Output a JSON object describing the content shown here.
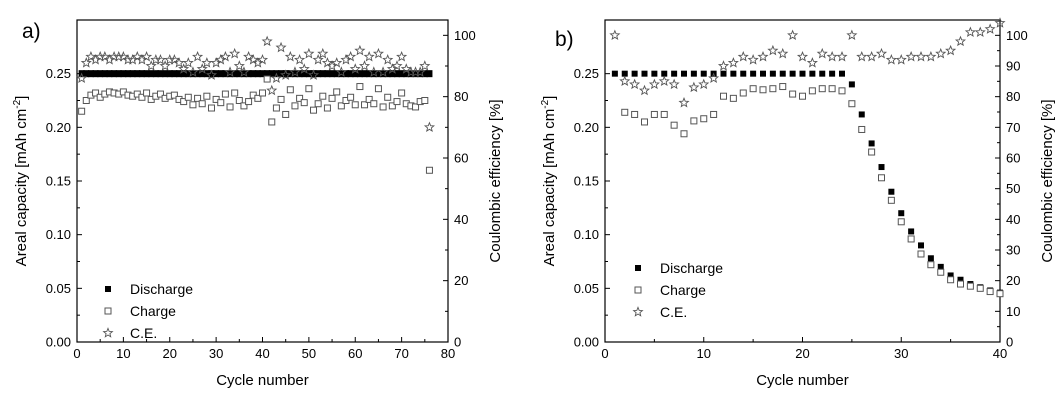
{
  "chart_data": [
    {
      "panel_label": "a)",
      "type": "scatter",
      "xlabel": "Cycle number",
      "ylabel": "Areal capacity [mAh cm",
      "ylabel_sup": "-2",
      "ylabel_close": "]",
      "y2label": "Coulombic efficiency [%]",
      "xlim": [
        0,
        80
      ],
      "ylim": [
        0,
        0.3
      ],
      "y2lim": [
        0,
        105
      ],
      "x_ticks": [
        0,
        10,
        20,
        30,
        40,
        50,
        60,
        70,
        80
      ],
      "y_ticks": [
        0.0,
        0.05,
        0.1,
        0.15,
        0.2,
        0.25
      ],
      "y2_ticks": [
        0,
        20,
        40,
        60,
        80,
        100
      ],
      "grid": false,
      "legend_position": "lower-left",
      "series": [
        {
          "name": "Discharge",
          "marker": "filled-square",
          "axis": "left",
          "x": [
            1,
            2,
            3,
            4,
            5,
            6,
            7,
            8,
            9,
            10,
            11,
            12,
            13,
            14,
            15,
            16,
            17,
            18,
            19,
            20,
            21,
            22,
            23,
            24,
            25,
            26,
            27,
            28,
            29,
            30,
            31,
            32,
            33,
            34,
            35,
            36,
            37,
            38,
            39,
            40,
            41,
            42,
            43,
            44,
            45,
            46,
            47,
            48,
            49,
            50,
            51,
            52,
            53,
            54,
            55,
            56,
            57,
            58,
            59,
            60,
            61,
            62,
            63,
            64,
            65,
            66,
            67,
            68,
            69,
            70,
            71,
            72,
            73,
            74,
            75,
            76
          ],
          "y": [
            0.25,
            0.25,
            0.25,
            0.25,
            0.25,
            0.25,
            0.25,
            0.25,
            0.25,
            0.25,
            0.25,
            0.25,
            0.25,
            0.25,
            0.25,
            0.25,
            0.25,
            0.25,
            0.25,
            0.25,
            0.25,
            0.25,
            0.25,
            0.25,
            0.25,
            0.25,
            0.25,
            0.25,
            0.25,
            0.25,
            0.25,
            0.25,
            0.25,
            0.25,
            0.25,
            0.25,
            0.25,
            0.25,
            0.25,
            0.25,
            0.25,
            0.25,
            0.25,
            0.25,
            0.25,
            0.25,
            0.25,
            0.25,
            0.25,
            0.25,
            0.25,
            0.25,
            0.25,
            0.25,
            0.25,
            0.25,
            0.25,
            0.25,
            0.25,
            0.25,
            0.25,
            0.25,
            0.25,
            0.25,
            0.25,
            0.25,
            0.25,
            0.25,
            0.25,
            0.25,
            0.25,
            0.25,
            0.25,
            0.25,
            0.25,
            0.25
          ]
        },
        {
          "name": "Charge",
          "marker": "open-square",
          "axis": "left",
          "x": [
            1,
            2,
            3,
            4,
            5,
            6,
            7,
            8,
            9,
            10,
            11,
            12,
            13,
            14,
            15,
            16,
            17,
            18,
            19,
            20,
            21,
            22,
            23,
            24,
            25,
            26,
            27,
            28,
            29,
            30,
            31,
            32,
            33,
            34,
            35,
            36,
            37,
            38,
            39,
            40,
            41,
            42,
            43,
            44,
            45,
            46,
            47,
            48,
            49,
            50,
            51,
            52,
            53,
            54,
            55,
            56,
            57,
            58,
            59,
            60,
            61,
            62,
            63,
            64,
            65,
            66,
            67,
            68,
            69,
            70,
            71,
            72,
            73,
            74,
            75,
            76
          ],
          "y": [
            0.215,
            0.225,
            0.23,
            0.232,
            0.228,
            0.231,
            0.233,
            0.232,
            0.231,
            0.233,
            0.23,
            0.229,
            0.231,
            0.228,
            0.232,
            0.226,
            0.229,
            0.231,
            0.227,
            0.229,
            0.23,
            0.226,
            0.224,
            0.228,
            0.221,
            0.227,
            0.222,
            0.229,
            0.218,
            0.226,
            0.223,
            0.231,
            0.219,
            0.232,
            0.225,
            0.22,
            0.224,
            0.23,
            0.227,
            0.232,
            0.245,
            0.205,
            0.218,
            0.226,
            0.212,
            0.235,
            0.22,
            0.227,
            0.223,
            0.236,
            0.216,
            0.222,
            0.229,
            0.218,
            0.227,
            0.233,
            0.22,
            0.225,
            0.228,
            0.221,
            0.238,
            0.221,
            0.226,
            0.222,
            0.236,
            0.219,
            0.228,
            0.22,
            0.224,
            0.232,
            0.222,
            0.22,
            0.219,
            0.224,
            0.225,
            0.16
          ]
        },
        {
          "name": "C.E.",
          "marker": "open-star",
          "axis": "right",
          "x": [
            1,
            2,
            3,
            4,
            5,
            6,
            7,
            8,
            9,
            10,
            11,
            12,
            13,
            14,
            15,
            16,
            17,
            18,
            19,
            20,
            21,
            22,
            23,
            24,
            25,
            26,
            27,
            28,
            29,
            30,
            31,
            32,
            33,
            34,
            35,
            36,
            37,
            38,
            39,
            40,
            41,
            42,
            43,
            44,
            45,
            46,
            47,
            48,
            49,
            50,
            51,
            52,
            53,
            54,
            55,
            56,
            57,
            58,
            59,
            60,
            61,
            62,
            63,
            64,
            65,
            66,
            67,
            68,
            69,
            70,
            71,
            72,
            73,
            74,
            75,
            76
          ],
          "y": [
            86,
            91,
            93,
            92,
            93,
            93,
            92,
            93,
            93,
            93,
            92,
            92,
            93,
            92,
            93,
            90,
            92,
            92,
            90,
            92,
            92,
            91,
            89,
            91,
            88,
            93,
            89,
            91,
            87,
            91,
            92,
            93,
            88,
            94,
            90,
            88,
            93,
            92,
            91,
            92,
            98,
            82,
            86,
            96,
            87,
            93,
            88,
            92,
            89,
            94,
            87,
            92,
            94,
            91,
            90,
            91,
            88,
            92,
            93,
            89,
            95,
            90,
            93,
            88,
            94,
            88,
            92,
            89,
            90,
            93,
            89,
            88,
            88,
            88,
            90,
            70
          ]
        }
      ]
    },
    {
      "panel_label": "b)",
      "type": "scatter",
      "xlabel": "Cycle number",
      "ylabel": "Areal capacity [mAh cm",
      "ylabel_sup": "-2",
      "ylabel_close": "]",
      "y2label": "Coulombic efficiency [%]",
      "xlim": [
        0,
        40
      ],
      "ylim": [
        0,
        0.3
      ],
      "y2lim": [
        0,
        105
      ],
      "x_ticks": [
        0,
        10,
        20,
        30,
        40
      ],
      "y_ticks": [
        0.0,
        0.05,
        0.1,
        0.15,
        0.2,
        0.25
      ],
      "y2_ticks": [
        0,
        10,
        20,
        30,
        40,
        50,
        60,
        70,
        80,
        90,
        100
      ],
      "grid": false,
      "legend_position": "lower-left",
      "series": [
        {
          "name": "Discharge",
          "marker": "filled-square",
          "axis": "left",
          "x": [
            1,
            2,
            3,
            4,
            5,
            6,
            7,
            8,
            9,
            10,
            11,
            12,
            13,
            14,
            15,
            16,
            17,
            18,
            19,
            20,
            21,
            22,
            23,
            24,
            25,
            26,
            27,
            28,
            29,
            30,
            31,
            32,
            33,
            34,
            35,
            36,
            37,
            38,
            39,
            40
          ],
          "y": [
            0.25,
            0.25,
            0.25,
            0.25,
            0.25,
            0.25,
            0.25,
            0.25,
            0.25,
            0.25,
            0.25,
            0.25,
            0.25,
            0.25,
            0.25,
            0.25,
            0.25,
            0.25,
            0.25,
            0.25,
            0.25,
            0.25,
            0.25,
            0.25,
            0.24,
            0.212,
            0.185,
            0.163,
            0.14,
            0.12,
            0.103,
            0.09,
            0.078,
            0.07,
            0.062,
            0.058,
            0.054,
            0.051,
            0.048,
            0.046
          ]
        },
        {
          "name": "Charge",
          "marker": "open-square",
          "axis": "left",
          "x": [
            2,
            3,
            4,
            5,
            6,
            7,
            8,
            9,
            10,
            11,
            12,
            13,
            14,
            15,
            16,
            17,
            18,
            19,
            20,
            21,
            22,
            23,
            24,
            25,
            26,
            27,
            28,
            29,
            30,
            31,
            32,
            33,
            34,
            35,
            36,
            37,
            38,
            39,
            40
          ],
          "y": [
            0.214,
            0.212,
            0.205,
            0.212,
            0.212,
            0.202,
            0.194,
            0.206,
            0.208,
            0.212,
            0.229,
            0.227,
            0.232,
            0.236,
            0.235,
            0.236,
            0.238,
            0.231,
            0.229,
            0.234,
            0.236,
            0.236,
            0.234,
            0.222,
            0.198,
            0.177,
            0.153,
            0.132,
            0.112,
            0.096,
            0.082,
            0.072,
            0.065,
            0.058,
            0.054,
            0.052,
            0.05,
            0.047,
            0.045
          ]
        },
        {
          "name": "C.E.",
          "marker": "open-star",
          "axis": "right",
          "x": [
            1,
            2,
            3,
            4,
            5,
            6,
            7,
            8,
            9,
            10,
            11,
            12,
            13,
            14,
            15,
            16,
            17,
            18,
            19,
            20,
            21,
            22,
            23,
            24,
            25,
            26,
            27,
            28,
            29,
            30,
            31,
            32,
            33,
            34,
            35,
            36,
            37,
            38,
            39,
            40
          ],
          "y": [
            100,
            85,
            84,
            82,
            84,
            85,
            84,
            78,
            83,
            84,
            86,
            90,
            91,
            93,
            92,
            93,
            95,
            94,
            100,
            93,
            91,
            94,
            93,
            93,
            100,
            93,
            93,
            94,
            92,
            92,
            93,
            93,
            93,
            94,
            95,
            98,
            101,
            101,
            102,
            104
          ]
        }
      ]
    }
  ]
}
